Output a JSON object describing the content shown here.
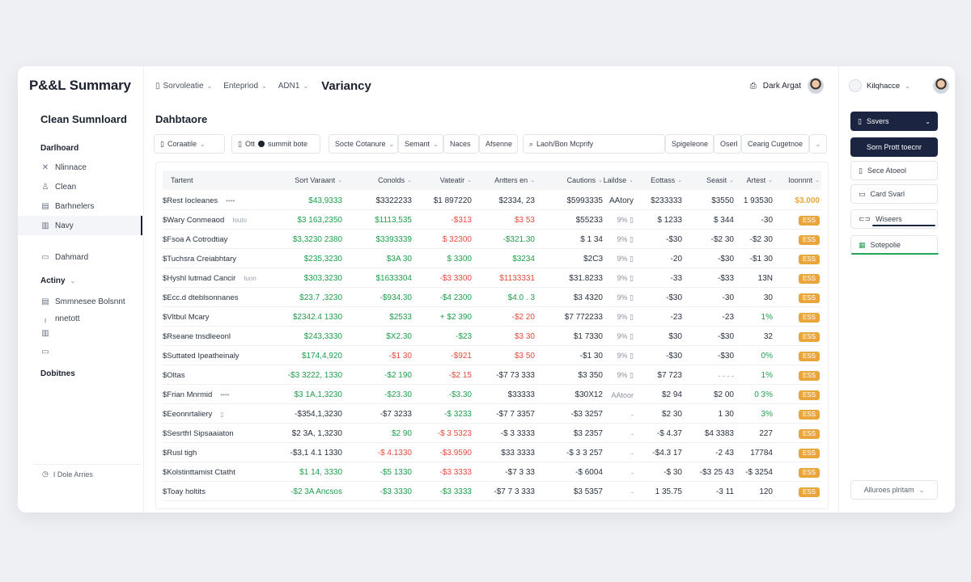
{
  "colors": {
    "positive": "#1f9d4c",
    "negative": "#e24b3c",
    "accent": "#1b2440",
    "badge": "#e9a63b"
  },
  "sidebar": {
    "brand": "P&&L Summary",
    "title": "Clean Sumnloard",
    "items": [
      {
        "label": "Darlhoard",
        "icon": "none",
        "head": true
      },
      {
        "label": "Nlinnace",
        "icon": "close-icon"
      },
      {
        "label": "Clean",
        "icon": "user-icon"
      },
      {
        "label": "Barhnelers",
        "icon": "grid-icon"
      },
      {
        "label": "Navy",
        "icon": "chart-icon",
        "active": true
      },
      {
        "label": "Dahmard",
        "icon": "layout-icon"
      },
      {
        "label": "Actiny",
        "icon": "none",
        "head": true,
        "dropdown": true
      },
      {
        "label": "Smmnesee Bolsnnt",
        "icon": "list-icon"
      },
      {
        "label": "nnetott",
        "icon": "pipe-icon"
      },
      {
        "label": "",
        "icon": "bar-icon"
      },
      {
        "label": "",
        "icon": "card-icon"
      },
      {
        "label": "Dobitnes",
        "icon": "none",
        "head": true
      }
    ],
    "footer": "I Dole Arries"
  },
  "header": {
    "selectors": [
      {
        "label": "Sorvoleatie",
        "icon": "doc-icon"
      },
      {
        "label": "Entepriod",
        "icon": "none"
      },
      {
        "label": "ADN1",
        "icon": "none"
      }
    ],
    "title": "Variancy",
    "user": "Dark Argat"
  },
  "dashboard_title": "Dahbtaore",
  "filters": [
    {
      "label": "Coraatile",
      "icon": "doc-icon",
      "chev": true
    },
    {
      "label": "Ott",
      "icon": "doc-icon",
      "chev": false
    },
    {
      "label": "summit bote",
      "icon": "dot",
      "chev": false
    },
    {
      "label": "Socte Cotanure",
      "icon": "none",
      "chev": true
    },
    {
      "label": "Semant",
      "icon": "none",
      "chev": true
    },
    {
      "label": "Naces",
      "icon": "none",
      "chev": false
    },
    {
      "label": "Afsenne",
      "icon": "none",
      "chev": false
    },
    {
      "label": "Laoh/Bon Mcprify",
      "icon": "search-icon",
      "chev": false
    },
    {
      "label": "Spigeleone",
      "icon": "none",
      "chev": false
    },
    {
      "label": "Oserl",
      "icon": "none",
      "chev": false
    },
    {
      "label": "Cearig Cugetnoe",
      "icon": "none",
      "chev": false
    }
  ],
  "table": {
    "headers": [
      "Tartent",
      "Sort Varaant",
      "Conolds",
      "Vateatir",
      "Antters en",
      "Cautions",
      "Laildse",
      "Eottass",
      "Seasit",
      "Artest",
      "Ioonnnt"
    ],
    "rows": [
      {
        "name": "Rest Iocleanes",
        "more": "••••",
        "cells": [
          [
            "$43,9333",
            "pos"
          ],
          [
            "$3322233",
            "neu"
          ],
          [
            "$1 897220",
            "neu"
          ],
          [
            "$2334, 23",
            "neu"
          ],
          [
            "$5993335",
            "neu"
          ],
          [
            "AAtory",
            "neu"
          ],
          [
            "$233333",
            "neu"
          ],
          [
            "$3550",
            "neu"
          ],
          [
            "1 93530",
            "neu"
          ],
          [
            "$3.000",
            "badgetext"
          ]
        ]
      },
      {
        "name": "Wary Conmeaod",
        "more": "Iouto",
        "cells": [
          [
            "$3 163,2350",
            "pos"
          ],
          [
            "$1113,535",
            "pos"
          ],
          [
            "-$313",
            "neg"
          ],
          [
            "$3 53",
            "neg"
          ],
          [
            "$55233",
            "neu"
          ],
          [
            "9% ▯",
            "muted"
          ],
          [
            "$ 1233",
            "neu"
          ],
          [
            "$ 344",
            "neu"
          ],
          [
            "-30",
            "neu"
          ],
          [
            "ESS",
            "badge"
          ]
        ]
      },
      {
        "name": "Fsoa A Cotrodtiay",
        "more": "",
        "cells": [
          [
            "$3,3230 2380",
            "pos"
          ],
          [
            "$3393339",
            "pos"
          ],
          [
            "$ 32300",
            "neg"
          ],
          [
            "-$321.30",
            "pos"
          ],
          [
            "$ 1 34",
            "neu"
          ],
          [
            "9% ▯",
            "muted"
          ],
          [
            "-$30",
            "neu"
          ],
          [
            "-$2 30",
            "neu"
          ],
          [
            "-$2 30",
            "neu"
          ],
          [
            "ESS",
            "badge"
          ]
        ]
      },
      {
        "name": "Tuchsra Creiabhtary",
        "more": "",
        "cells": [
          [
            "$235,3230",
            "pos"
          ],
          [
            "$3A 30",
            "pos"
          ],
          [
            "$ 3300",
            "pos"
          ],
          [
            "$3234",
            "pos"
          ],
          [
            "$2C3",
            "neu"
          ],
          [
            "9% ▯",
            "muted"
          ],
          [
            "-20",
            "neu"
          ],
          [
            "-$30",
            "neu"
          ],
          [
            "-$1 30",
            "neu"
          ],
          [
            "ESS",
            "badge"
          ]
        ]
      },
      {
        "name": "Hyshl lutmad Cancir",
        "more": "Iuon",
        "cells": [
          [
            "$303,3230",
            "pos"
          ],
          [
            "$1633304",
            "pos"
          ],
          [
            "-$3 3300",
            "neg"
          ],
          [
            "$1133331",
            "neg"
          ],
          [
            "$31.8233",
            "neu"
          ],
          [
            "9% ▯",
            "muted"
          ],
          [
            "-33",
            "neu"
          ],
          [
            "-$33",
            "neu"
          ],
          [
            "13N",
            "neu"
          ],
          [
            "ESS",
            "badge"
          ]
        ]
      },
      {
        "name": "Ecc.d dteblsonnanes",
        "more": "",
        "cells": [
          [
            "$23.7 ,3230",
            "pos"
          ],
          [
            "-$934.30",
            "pos"
          ],
          [
            "-$4 2300",
            "pos"
          ],
          [
            "$4.0 . 3",
            "pos"
          ],
          [
            "$3 4320",
            "neu"
          ],
          [
            "9% ▯",
            "muted"
          ],
          [
            "-$30",
            "neu"
          ],
          [
            "-30",
            "neu"
          ],
          [
            "30",
            "neu"
          ],
          [
            "ESS",
            "badge"
          ]
        ]
      },
      {
        "name": "Vltbul Mcary",
        "more": "",
        "cells": [
          [
            "$2342.4 1330",
            "pos"
          ],
          [
            "$2533",
            "pos"
          ],
          [
            "+ $2 390",
            "pos"
          ],
          [
            "-$2 20",
            "neg"
          ],
          [
            "$7 772233",
            "neu"
          ],
          [
            "9% ▯",
            "muted"
          ],
          [
            "-23",
            "neu"
          ],
          [
            "-23",
            "neu"
          ],
          [
            "1%",
            "pos"
          ],
          [
            "ESS",
            "badge"
          ]
        ]
      },
      {
        "name": "Rseane tnsdleeonl",
        "more": "",
        "cells": [
          [
            "$243,3330",
            "pos"
          ],
          [
            "$X2.30",
            "pos"
          ],
          [
            "-$23",
            "pos"
          ],
          [
            "$3 30",
            "neg"
          ],
          [
            "$1 7330",
            "neu"
          ],
          [
            "9% ▯",
            "muted"
          ],
          [
            "$30",
            "neu"
          ],
          [
            "-$30",
            "neu"
          ],
          [
            "32",
            "neu"
          ],
          [
            "ESS",
            "badge"
          ]
        ]
      },
      {
        "name": "Suttated Ipeatheinaly",
        "more": "",
        "cells": [
          [
            "$174,4,920",
            "pos"
          ],
          [
            "-$1 30",
            "neg"
          ],
          [
            "-$921",
            "neg"
          ],
          [
            "$3 50",
            "neg"
          ],
          [
            "-$1 30",
            "neu"
          ],
          [
            "9% ▯",
            "muted"
          ],
          [
            "-$30",
            "neu"
          ],
          [
            "-$30",
            "neu"
          ],
          [
            "0%",
            "pos"
          ],
          [
            "ESS",
            "badge"
          ]
        ]
      },
      {
        "name": "Oltas",
        "more": "",
        "cells": [
          [
            "-$3 3222, 1330",
            "pos"
          ],
          [
            "-$2 190",
            "pos"
          ],
          [
            "-$2 15",
            "neg"
          ],
          [
            "-$7 73 333",
            "neu"
          ],
          [
            "$3 350",
            "neu"
          ],
          [
            "9% ▯",
            "muted"
          ],
          [
            "$7 723",
            "neu"
          ],
          [
            "- - - -",
            "muted"
          ],
          [
            "1%",
            "pos"
          ],
          [
            "ESS",
            "badge"
          ]
        ]
      },
      {
        "name": "Frian Mnrmid",
        "more": "••••",
        "cells": [
          [
            "$3 1A,1,3230",
            "pos"
          ],
          [
            "-$23.30",
            "pos"
          ],
          [
            "-$3.30",
            "pos"
          ],
          [
            "$33333",
            "neu"
          ],
          [
            "$30X12",
            "neu"
          ],
          [
            "AAtoor",
            "muted"
          ],
          [
            "$2 94",
            "neu"
          ],
          [
            "$2 00",
            "neu"
          ],
          [
            "0 3%",
            "pos"
          ],
          [
            "ESS",
            "badge"
          ]
        ]
      },
      {
        "name": "Eeonnrtaliery",
        "more": "▯",
        "cells": [
          [
            "-$354,1,3230",
            "neu"
          ],
          [
            "-$7 3233",
            "neu"
          ],
          [
            "-$ 3233",
            "pos"
          ],
          [
            "-$7 7 3357",
            "neu"
          ],
          [
            "-$3 3257",
            "neu"
          ],
          [
            "-",
            "muted"
          ],
          [
            "$2 30",
            "neu"
          ],
          [
            "1 30",
            "neu"
          ],
          [
            "3%",
            "pos"
          ],
          [
            "ESS",
            "badge"
          ]
        ]
      },
      {
        "name": "Sesrtfrl Sipsaaiaton",
        "more": "",
        "cells": [
          [
            "$2 3A, 1,3230",
            "neu"
          ],
          [
            "$2 90",
            "pos"
          ],
          [
            "-$ 3 5323",
            "neg"
          ],
          [
            "-$ 3 3333",
            "neu"
          ],
          [
            "$3 2357",
            "neu"
          ],
          [
            "-",
            "muted"
          ],
          [
            "-$ 4.37",
            "neu"
          ],
          [
            "$4 3383",
            "neu"
          ],
          [
            "227",
            "neu"
          ],
          [
            "ESS",
            "badge"
          ]
        ]
      },
      {
        "name": "Rusl tigh",
        "more": "",
        "cells": [
          [
            "-$3,1 4.1 1330",
            "neu"
          ],
          [
            "-$ 4.1330",
            "neg"
          ],
          [
            "-$3.9590",
            "neg"
          ],
          [
            "$33 3333",
            "neu"
          ],
          [
            "-$ 3 3 257",
            "neu"
          ],
          [
            "-",
            "muted"
          ],
          [
            "-$4.3 17",
            "neu"
          ],
          [
            "-2 43",
            "neu"
          ],
          [
            "17784",
            "neu"
          ],
          [
            "ESS",
            "badge"
          ]
        ]
      },
      {
        "name": "Kolstinttamist Ctatht",
        "more": "",
        "cells": [
          [
            "$1 14, 3330",
            "pos"
          ],
          [
            "-$5 1330",
            "pos"
          ],
          [
            "-$3 3333",
            "neg"
          ],
          [
            "-$7 3 33",
            "neu"
          ],
          [
            "-$ 6004",
            "neu"
          ],
          [
            "-",
            "muted"
          ],
          [
            "-$ 30",
            "neu"
          ],
          [
            "-$3 25 43",
            "neu"
          ],
          [
            "-$ 3254",
            "neu"
          ],
          [
            "ESS",
            "badge"
          ]
        ]
      },
      {
        "name": "Toay holtits",
        "more": "",
        "cells": [
          [
            "-$2 3A Ancsos",
            "pos"
          ],
          [
            "-$3 3330",
            "pos"
          ],
          [
            "-$3 3333",
            "pos"
          ],
          [
            "-$7 7 3 333",
            "neu"
          ],
          [
            "$3 5357",
            "neu"
          ],
          [
            "-",
            "muted"
          ],
          [
            "1 35.75",
            "neu"
          ],
          [
            "-3 11",
            "neu"
          ],
          [
            "120",
            "neu"
          ],
          [
            "ESS",
            "badge"
          ]
        ]
      }
    ]
  },
  "right_panel": {
    "user": "Kilqhacce",
    "buttons": [
      {
        "label": "Ssvers",
        "style": "dark",
        "icon": "doc-icon",
        "chev": true
      },
      {
        "label": "Sorn Prott toecnr",
        "style": "dark",
        "icon": "none",
        "chev": false
      },
      {
        "label": "Sece Atoeol",
        "style": "light",
        "icon": "doc-icon",
        "chev": false
      },
      {
        "label": "Card Svarl",
        "style": "light",
        "icon": "card-icon",
        "chev": false
      },
      {
        "label": "Wiseers",
        "style": "light",
        "icon": "toggle-icon",
        "chev": false,
        "bar": "dark"
      },
      {
        "label": "Sotepolie",
        "style": "light",
        "icon": "sheet-icon",
        "chev": false,
        "bar": "green"
      }
    ],
    "bottom": "Alluroes plritam"
  }
}
